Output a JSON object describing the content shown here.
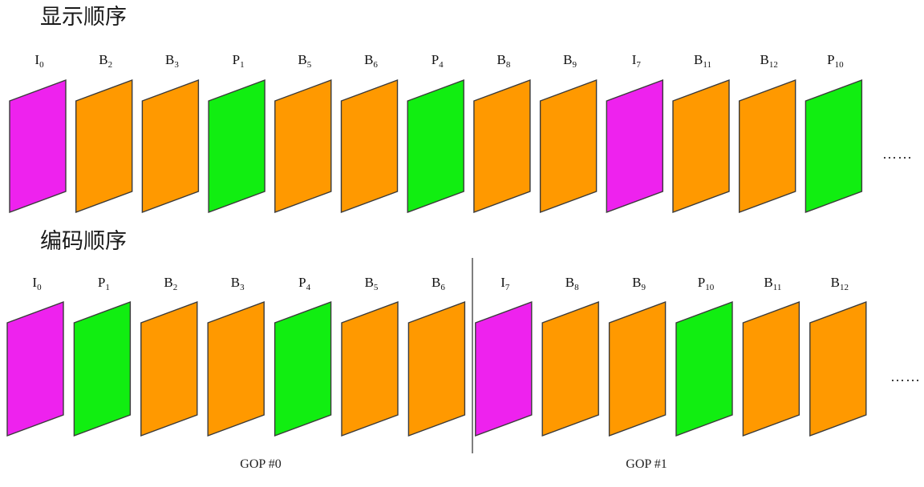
{
  "colors": {
    "I": "#ee22ee",
    "B": "#ff9900",
    "P": "#11ee11"
  },
  "display_order": {
    "title": "显示顺序",
    "frames": [
      {
        "type": "I",
        "letter": "I",
        "sub": "0"
      },
      {
        "type": "B",
        "letter": "B",
        "sub": "2"
      },
      {
        "type": "B",
        "letter": "B",
        "sub": "3"
      },
      {
        "type": "P",
        "letter": "P",
        "sub": "1"
      },
      {
        "type": "B",
        "letter": "B",
        "sub": "5"
      },
      {
        "type": "B",
        "letter": "B",
        "sub": "6"
      },
      {
        "type": "P",
        "letter": "P",
        "sub": "4"
      },
      {
        "type": "B",
        "letter": "B",
        "sub": "8"
      },
      {
        "type": "B",
        "letter": "B",
        "sub": "9"
      },
      {
        "type": "I",
        "letter": "I",
        "sub": "7"
      },
      {
        "type": "B",
        "letter": "B",
        "sub": "11"
      },
      {
        "type": "B",
        "letter": "B",
        "sub": "12"
      },
      {
        "type": "P",
        "letter": "P",
        "sub": "10"
      }
    ],
    "ellipsis": "……"
  },
  "coding_order": {
    "title": "编码顺序",
    "frames": [
      {
        "type": "I",
        "letter": "I",
        "sub": "0"
      },
      {
        "type": "P",
        "letter": "P",
        "sub": "1"
      },
      {
        "type": "B",
        "letter": "B",
        "sub": "2"
      },
      {
        "type": "B",
        "letter": "B",
        "sub": "3"
      },
      {
        "type": "P",
        "letter": "P",
        "sub": "4"
      },
      {
        "type": "B",
        "letter": "B",
        "sub": "5"
      },
      {
        "type": "B",
        "letter": "B",
        "sub": "6"
      },
      {
        "type": "I",
        "letter": "I",
        "sub": "7"
      },
      {
        "type": "B",
        "letter": "B",
        "sub": "8"
      },
      {
        "type": "B",
        "letter": "B",
        "sub": "9"
      },
      {
        "type": "P",
        "letter": "P",
        "sub": "10"
      },
      {
        "type": "B",
        "letter": "B",
        "sub": "11"
      },
      {
        "type": "B",
        "letter": "B",
        "sub": "12"
      }
    ],
    "ellipsis": "……",
    "gop_labels": [
      "GOP #0",
      "GOP #1"
    ]
  }
}
